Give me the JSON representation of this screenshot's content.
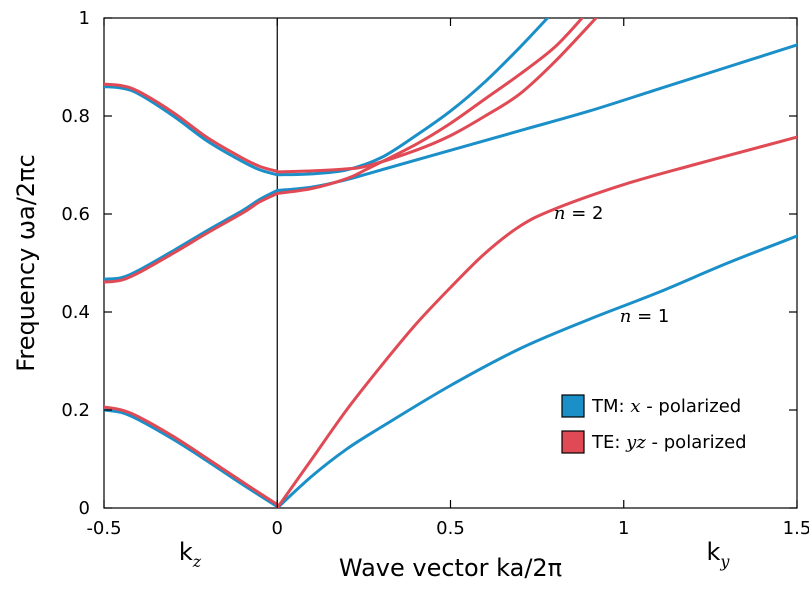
{
  "chart_data": {
    "type": "line",
    "xlabel": "Wave vector  ka/2π",
    "ylabel": "Frequency  ωa/2πc",
    "xlim": [
      -0.5,
      1.5
    ],
    "ylim": [
      0,
      1
    ],
    "grid": false,
    "legend_position": "bottom-right",
    "x_ticks": [
      {
        "value": -0.5,
        "label": "-0.5"
      },
      {
        "value": 0,
        "label": "0"
      },
      {
        "value": 0.5,
        "label": "0.5"
      },
      {
        "value": 1,
        "label": "1"
      },
      {
        "value": 1.5,
        "label": "1.5"
      }
    ],
    "y_ticks": [
      {
        "value": 0,
        "label": "0"
      },
      {
        "value": 0.2,
        "label": "0.2"
      },
      {
        "value": 0.4,
        "label": "0.4"
      },
      {
        "value": 0.6,
        "label": "0.6"
      },
      {
        "value": 0.8,
        "label": "0.8"
      },
      {
        "value": 1,
        "label": "1"
      }
    ],
    "axis_sublabels": {
      "left": {
        "base": "k",
        "sub": "z"
      },
      "right": {
        "base": "k",
        "sub": "y"
      }
    },
    "colors": {
      "TM": "#1a8fc8",
      "TE": "#e04a55"
    },
    "legend": [
      {
        "prefix": "TM: ",
        "italic": "x",
        "suffix": " - polarized",
        "color": "#1a8fc8"
      },
      {
        "prefix": "TE: ",
        "italic": "yz",
        "suffix": " - polarized",
        "color": "#e04a55"
      }
    ],
    "annotations": [
      {
        "italic": "n",
        "text": " = 2",
        "x": 0.87,
        "y": 0.59
      },
      {
        "italic": "n",
        "text": " = 1",
        "x": 1.06,
        "y": 0.38
      }
    ],
    "series": [
      {
        "pol": "TM",
        "x": [
          -0.5,
          -0.45,
          -0.4,
          -0.3,
          -0.2,
          -0.1,
          0
        ],
        "y": [
          0.2,
          0.195,
          0.18,
          0.14,
          0.095,
          0.048,
          0.003
        ]
      },
      {
        "pol": "TE",
        "x": [
          -0.5,
          -0.45,
          -0.4,
          -0.3,
          -0.2,
          -0.1,
          0
        ],
        "y": [
          0.206,
          0.2,
          0.186,
          0.146,
          0.1,
          0.053,
          0.007
        ]
      },
      {
        "pol": "TM",
        "x": [
          -0.5,
          -0.45,
          -0.4,
          -0.3,
          -0.2,
          -0.1,
          -0.05,
          0
        ],
        "y": [
          0.467,
          0.47,
          0.485,
          0.525,
          0.567,
          0.607,
          0.63,
          0.648
        ]
      },
      {
        "pol": "TE",
        "x": [
          -0.5,
          -0.45,
          -0.4,
          -0.3,
          -0.2,
          -0.1,
          -0.05,
          0
        ],
        "y": [
          0.461,
          0.465,
          0.48,
          0.52,
          0.562,
          0.602,
          0.625,
          0.642
        ]
      },
      {
        "pol": "TM",
        "x": [
          -0.5,
          -0.45,
          -0.4,
          -0.3,
          -0.2,
          -0.1,
          -0.05,
          0
        ],
        "y": [
          0.86,
          0.857,
          0.845,
          0.8,
          0.748,
          0.707,
          0.69,
          0.68
        ]
      },
      {
        "pol": "TE",
        "x": [
          -0.5,
          -0.45,
          -0.4,
          -0.3,
          -0.2,
          -0.1,
          -0.05,
          0
        ],
        "y": [
          0.865,
          0.862,
          0.85,
          0.807,
          0.755,
          0.714,
          0.697,
          0.687
        ]
      },
      {
        "pol": "TM",
        "x": [
          0,
          0.1,
          0.2,
          0.3,
          0.5,
          0.7,
          0.9,
          1.1,
          1.3,
          1.5
        ],
        "y": [
          0.648,
          0.655,
          0.67,
          0.69,
          0.73,
          0.77,
          0.81,
          0.855,
          0.9,
          0.945
        ]
      },
      {
        "pol": "TM",
        "x": [
          0,
          0.1,
          0.2,
          0.3,
          0.4,
          0.5,
          0.6,
          0.7,
          0.78
        ],
        "y": [
          0.68,
          0.682,
          0.69,
          0.715,
          0.76,
          0.81,
          0.87,
          0.94,
          1.0
        ]
      },
      {
        "pol": "TE",
        "x": [
          0,
          0.1,
          0.2,
          0.26,
          0.4,
          0.5,
          0.6,
          0.7,
          0.8,
          0.88
        ],
        "y": [
          0.642,
          0.652,
          0.672,
          0.692,
          0.742,
          0.785,
          0.835,
          0.885,
          0.94,
          1.0
        ]
      },
      {
        "pol": "TE",
        "x": [
          0,
          0.1,
          0.2,
          0.26,
          0.4,
          0.5,
          0.6,
          0.7,
          0.8,
          0.92
        ],
        "y": [
          0.686,
          0.688,
          0.692,
          0.698,
          0.73,
          0.76,
          0.8,
          0.845,
          0.91,
          1.0
        ]
      },
      {
        "pol": "TM",
        "x": [
          0,
          0.1,
          0.2,
          0.3,
          0.5,
          0.7,
          0.9,
          1.1,
          1.3,
          1.5
        ],
        "y": [
          0,
          0.065,
          0.12,
          0.165,
          0.25,
          0.325,
          0.385,
          0.44,
          0.5,
          0.555
        ]
      },
      {
        "pol": "TE",
        "x": [
          0,
          0.1,
          0.2,
          0.3,
          0.4,
          0.5,
          0.6,
          0.7,
          0.8,
          1.0,
          1.2,
          1.4,
          1.5
        ],
        "y": [
          0,
          0.1,
          0.2,
          0.29,
          0.375,
          0.45,
          0.52,
          0.575,
          0.61,
          0.66,
          0.7,
          0.738,
          0.757
        ]
      }
    ]
  }
}
